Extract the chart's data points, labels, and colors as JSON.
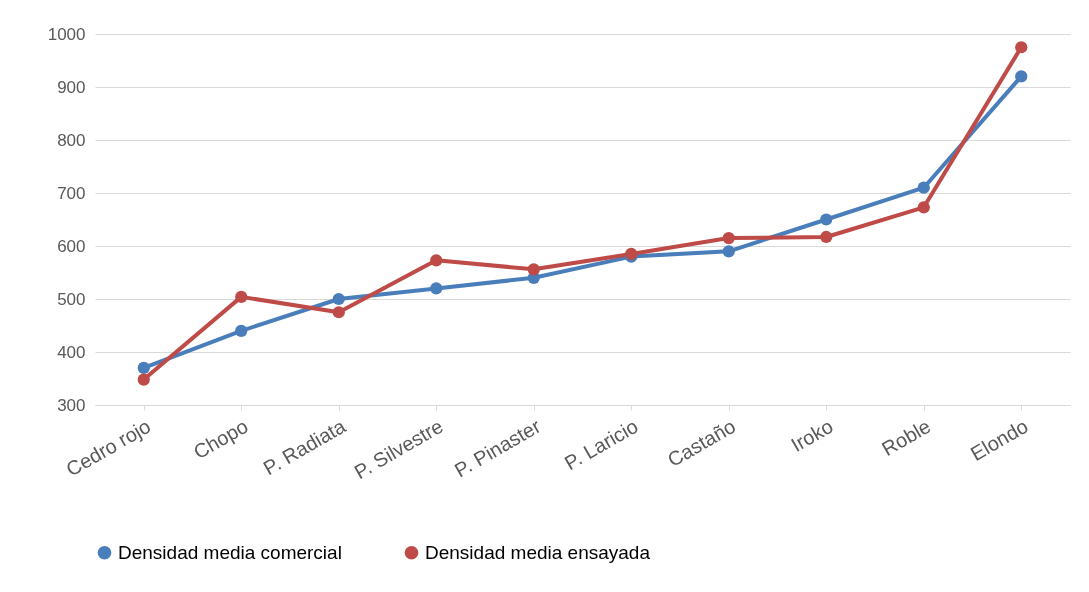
{
  "chart_data": {
    "type": "line",
    "categories": [
      "Cedro rojo",
      "Chopo",
      "P. Radiata",
      "P. Silvestre",
      "P. Pinaster",
      "P. Laricio",
      "Castaño",
      "Iroko",
      "Roble",
      "Elondo"
    ],
    "series": [
      {
        "name": "Densidad media comercial",
        "color": "#4a7ebb",
        "values": [
          370,
          440,
          500,
          520,
          540,
          580,
          590,
          650,
          710,
          920
        ]
      },
      {
        "name": "Densidad media ensayada",
        "color": "#be4b48",
        "values": [
          348,
          504,
          475,
          573,
          556,
          585,
          615,
          617,
          673,
          975
        ]
      }
    ],
    "ylim": [
      300,
      1000
    ],
    "yticks": [
      300,
      400,
      500,
      600,
      700,
      800,
      900,
      1000
    ],
    "grid": "y",
    "legend": "bottom",
    "marker": "circle",
    "line_style": "solid"
  }
}
